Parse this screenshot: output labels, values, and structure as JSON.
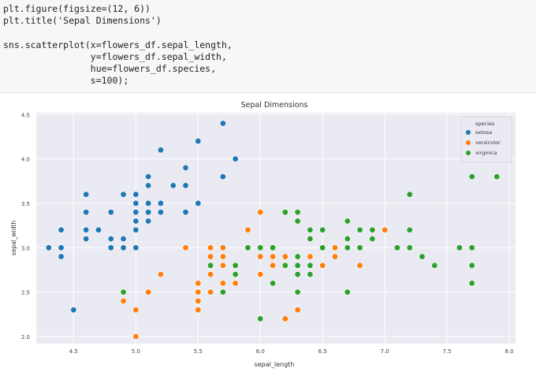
{
  "code_cell": {
    "lines": [
      "plt.figure(figsize=(12, 6))",
      "plt.title('Sepal Dimensions')",
      "",
      "sns.scatterplot(x=flowers_df.sepal_length,",
      "                y=flowers_df.sepal_width,",
      "                hue=flowers_df.species,",
      "                s=100);"
    ]
  },
  "chart_data": {
    "type": "scatter",
    "title": "Sepal Dimensions",
    "xlabel": "sepal_length",
    "ylabel": "sepal_width",
    "xlim": [
      4.2,
      8.05
    ],
    "ylim": [
      1.92,
      4.52
    ],
    "xticks": [
      "4.5",
      "5.0",
      "5.5",
      "6.0",
      "6.5",
      "7.0",
      "7.5",
      "8.0"
    ],
    "yticks": [
      "2.0",
      "2.5",
      "3.0",
      "3.5",
      "4.0",
      "4.5"
    ],
    "grid": true,
    "legend": {
      "title": "species",
      "placement": "top-right"
    },
    "series": [
      {
        "name": "setosa",
        "color": "#1f77b4",
        "points": [
          [
            4.3,
            3.0
          ],
          [
            4.4,
            2.9
          ],
          [
            4.4,
            3.0
          ],
          [
            4.4,
            3.2
          ],
          [
            4.5,
            2.3
          ],
          [
            4.6,
            3.1
          ],
          [
            4.6,
            3.2
          ],
          [
            4.6,
            3.4
          ],
          [
            4.6,
            3.6
          ],
          [
            4.7,
            3.2
          ],
          [
            4.8,
            3.0
          ],
          [
            4.8,
            3.1
          ],
          [
            4.8,
            3.4
          ],
          [
            4.9,
            3.0
          ],
          [
            4.9,
            3.1
          ],
          [
            4.9,
            3.6
          ],
          [
            5.0,
            3.0
          ],
          [
            5.0,
            3.2
          ],
          [
            5.0,
            3.3
          ],
          [
            5.0,
            3.4
          ],
          [
            5.0,
            3.5
          ],
          [
            5.0,
            3.6
          ],
          [
            5.1,
            3.3
          ],
          [
            5.1,
            3.4
          ],
          [
            5.1,
            3.5
          ],
          [
            5.1,
            3.7
          ],
          [
            5.1,
            3.8
          ],
          [
            5.2,
            3.4
          ],
          [
            5.2,
            3.5
          ],
          [
            5.2,
            4.1
          ],
          [
            5.3,
            3.7
          ],
          [
            5.4,
            3.4
          ],
          [
            5.4,
            3.7
          ],
          [
            5.4,
            3.9
          ],
          [
            5.5,
            3.5
          ],
          [
            5.5,
            4.2
          ],
          [
            5.7,
            3.8
          ],
          [
            5.7,
            4.4
          ],
          [
            5.8,
            4.0
          ]
        ]
      },
      {
        "name": "versicolor",
        "color": "#ff7f0e",
        "points": [
          [
            4.9,
            2.4
          ],
          [
            5.0,
            2.0
          ],
          [
            5.0,
            2.3
          ],
          [
            5.1,
            2.5
          ],
          [
            5.2,
            2.7
          ],
          [
            5.4,
            3.0
          ],
          [
            5.5,
            2.3
          ],
          [
            5.5,
            2.4
          ],
          [
            5.5,
            2.5
          ],
          [
            5.5,
            2.6
          ],
          [
            5.6,
            2.5
          ],
          [
            5.6,
            2.7
          ],
          [
            5.6,
            2.9
          ],
          [
            5.6,
            3.0
          ],
          [
            5.7,
            2.6
          ],
          [
            5.7,
            2.8
          ],
          [
            5.7,
            2.9
          ],
          [
            5.7,
            3.0
          ],
          [
            5.8,
            2.6
          ],
          [
            5.8,
            2.7
          ],
          [
            5.9,
            3.0
          ],
          [
            5.9,
            3.2
          ],
          [
            6.0,
            2.2
          ],
          [
            6.0,
            2.7
          ],
          [
            6.0,
            2.9
          ],
          [
            6.0,
            3.4
          ],
          [
            6.1,
            2.8
          ],
          [
            6.1,
            2.9
          ],
          [
            6.1,
            3.0
          ],
          [
            6.2,
            2.2
          ],
          [
            6.2,
            2.9
          ],
          [
            6.3,
            2.3
          ],
          [
            6.3,
            2.5
          ],
          [
            6.3,
            3.3
          ],
          [
            6.4,
            2.9
          ],
          [
            6.4,
            3.2
          ],
          [
            6.5,
            2.8
          ],
          [
            6.6,
            2.9
          ],
          [
            6.6,
            3.0
          ],
          [
            6.7,
            3.0
          ],
          [
            6.7,
            3.1
          ],
          [
            6.8,
            2.8
          ],
          [
            6.9,
            3.1
          ],
          [
            7.0,
            3.2
          ]
        ]
      },
      {
        "name": "virginica",
        "color": "#2ca02c",
        "points": [
          [
            4.9,
            2.5
          ],
          [
            5.6,
            2.8
          ],
          [
            5.7,
            2.5
          ],
          [
            5.8,
            2.7
          ],
          [
            5.8,
            2.8
          ],
          [
            5.9,
            3.0
          ],
          [
            6.0,
            2.2
          ],
          [
            6.0,
            3.0
          ],
          [
            6.1,
            2.6
          ],
          [
            6.1,
            3.0
          ],
          [
            6.2,
            2.8
          ],
          [
            6.2,
            3.4
          ],
          [
            6.3,
            2.5
          ],
          [
            6.3,
            2.7
          ],
          [
            6.3,
            2.8
          ],
          [
            6.3,
            2.9
          ],
          [
            6.3,
            3.3
          ],
          [
            6.3,
            3.4
          ],
          [
            6.4,
            2.7
          ],
          [
            6.4,
            2.8
          ],
          [
            6.4,
            3.1
          ],
          [
            6.4,
            3.2
          ],
          [
            6.5,
            3.0
          ],
          [
            6.5,
            3.2
          ],
          [
            6.7,
            2.5
          ],
          [
            6.7,
            3.0
          ],
          [
            6.7,
            3.1
          ],
          [
            6.7,
            3.3
          ],
          [
            6.8,
            3.0
          ],
          [
            6.8,
            3.2
          ],
          [
            6.9,
            3.1
          ],
          [
            6.9,
            3.2
          ],
          [
            7.1,
            3.0
          ],
          [
            7.2,
            3.0
          ],
          [
            7.2,
            3.2
          ],
          [
            7.2,
            3.6
          ],
          [
            7.3,
            2.9
          ],
          [
            7.4,
            2.8
          ],
          [
            7.6,
            3.0
          ],
          [
            7.7,
            2.6
          ],
          [
            7.7,
            2.8
          ],
          [
            7.7,
            3.0
          ],
          [
            7.7,
            3.8
          ],
          [
            7.9,
            3.8
          ]
        ]
      }
    ]
  }
}
